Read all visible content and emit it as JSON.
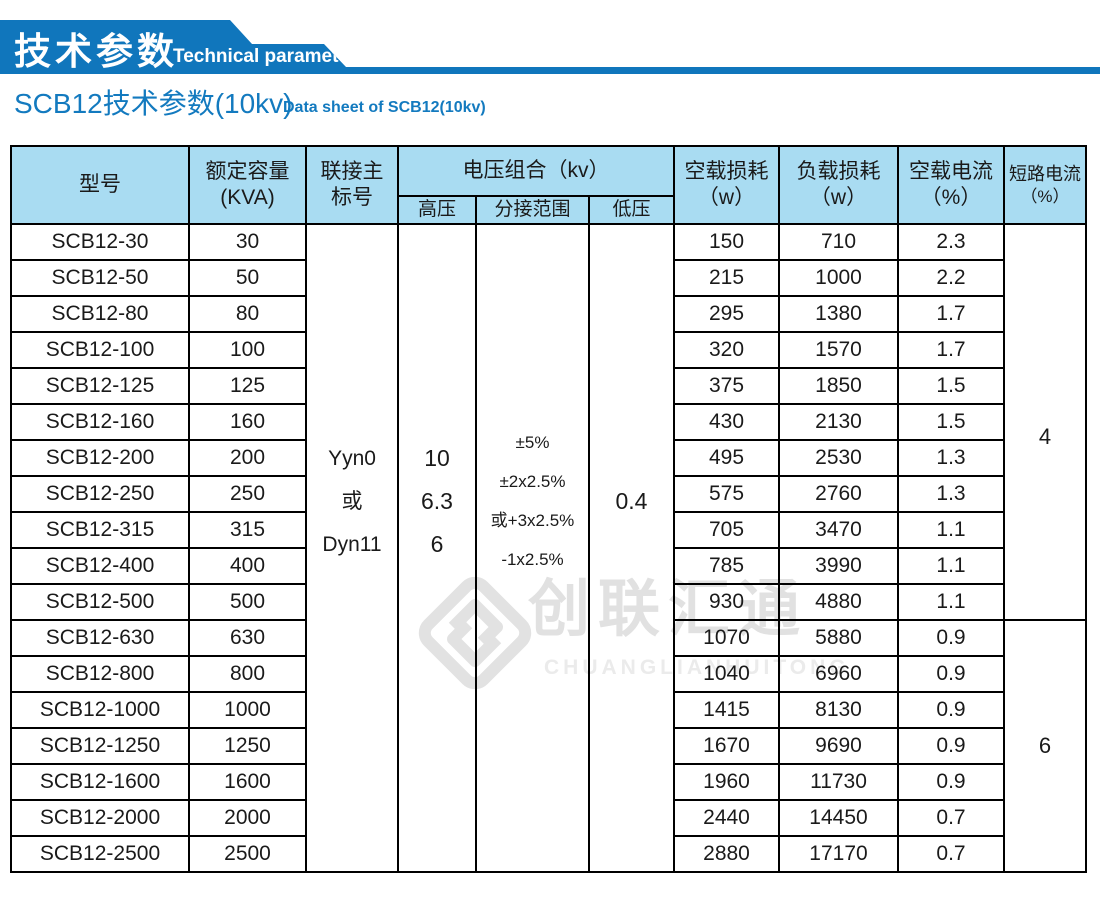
{
  "banner": {
    "title_cn": "技术参数",
    "title_en": "Technical parameter"
  },
  "page_title": {
    "cn": "SCB12技术参数(10kv)",
    "en": "Data sheet of SCB12(10kv)"
  },
  "colors": {
    "banner_blue": "#1076BC",
    "title_blue": "#137ABF",
    "header_bg": "#A9DCF2",
    "border_black": "#000000",
    "watermark_gray": "#E1E1E1"
  },
  "watermark": {
    "text_cn": "创联汇通",
    "text_en": "CHUANGLIANHUITONG"
  },
  "table": {
    "headers": {
      "model": "型号",
      "capacity_l1": "额定容量",
      "capacity_l2": "(KVA)",
      "vector_l1": "联接主",
      "vector_l2": "标号",
      "voltage_group": "电压组合（kv）",
      "hv": "高压",
      "tap": "分接范围",
      "lv": "低压",
      "no_load_loss_l1": "空载损耗",
      "no_load_loss_l2": "（w）",
      "load_loss_l1": "负载损耗",
      "load_loss_l2": "（w）",
      "no_load_current_l1": "空载电流",
      "no_load_current_l2": "（%）",
      "short_circuit_l1": "短路电流",
      "short_circuit_l2": "（%）"
    },
    "merged": {
      "vector_lines": [
        "Yyn0",
        "或",
        "Dyn11"
      ],
      "hv_lines": [
        "10",
        "6.3",
        "6"
      ],
      "tap_lines": [
        "±5%",
        "±2x2.5%",
        "或+3x2.5%",
        "-1x2.5%"
      ],
      "lv": "0.4",
      "short_circuit_groups": [
        {
          "value": "4",
          "rows": 11
        },
        {
          "value": "6",
          "rows": 7
        }
      ]
    },
    "rows": [
      {
        "model": "SCB12-30",
        "kva": "30",
        "no_load_loss": "150",
        "load_loss": "710",
        "no_load_current": "2.3"
      },
      {
        "model": "SCB12-50",
        "kva": "50",
        "no_load_loss": "215",
        "load_loss": "1000",
        "no_load_current": "2.2"
      },
      {
        "model": "SCB12-80",
        "kva": "80",
        "no_load_loss": "295",
        "load_loss": "1380",
        "no_load_current": "1.7"
      },
      {
        "model": "SCB12-100",
        "kva": "100",
        "no_load_loss": "320",
        "load_loss": "1570",
        "no_load_current": "1.7"
      },
      {
        "model": "SCB12-125",
        "kva": "125",
        "no_load_loss": "375",
        "load_loss": "1850",
        "no_load_current": "1.5"
      },
      {
        "model": "SCB12-160",
        "kva": "160",
        "no_load_loss": "430",
        "load_loss": "2130",
        "no_load_current": "1.5"
      },
      {
        "model": "SCB12-200",
        "kva": "200",
        "no_load_loss": "495",
        "load_loss": "2530",
        "no_load_current": "1.3"
      },
      {
        "model": "SCB12-250",
        "kva": "250",
        "no_load_loss": "575",
        "load_loss": "2760",
        "no_load_current": "1.3"
      },
      {
        "model": "SCB12-315",
        "kva": "315",
        "no_load_loss": "705",
        "load_loss": "3470",
        "no_load_current": "1.1"
      },
      {
        "model": "SCB12-400",
        "kva": "400",
        "no_load_loss": "785",
        "load_loss": "3990",
        "no_load_current": "1.1"
      },
      {
        "model": "SCB12-500",
        "kva": "500",
        "no_load_loss": "930",
        "load_loss": "4880",
        "no_load_current": "1.1"
      },
      {
        "model": "SCB12-630",
        "kva": "630",
        "no_load_loss": "1070",
        "load_loss": "5880",
        "no_load_current": "0.9"
      },
      {
        "model": "SCB12-800",
        "kva": "800",
        "no_load_loss": "1040",
        "load_loss": "6960",
        "no_load_current": "0.9"
      },
      {
        "model": "SCB12-1000",
        "kva": "1000",
        "no_load_loss": "1415",
        "load_loss": "8130",
        "no_load_current": "0.9"
      },
      {
        "model": "SCB12-1250",
        "kva": "1250",
        "no_load_loss": "1670",
        "load_loss": "9690",
        "no_load_current": "0.9"
      },
      {
        "model": "SCB12-1600",
        "kva": "1600",
        "no_load_loss": "1960",
        "load_loss": "11730",
        "no_load_current": "0.9"
      },
      {
        "model": "SCB12-2000",
        "kva": "2000",
        "no_load_loss": "2440",
        "load_loss": "14450",
        "no_load_current": "0.7"
      },
      {
        "model": "SCB12-2500",
        "kva": "2500",
        "no_load_loss": "2880",
        "load_loss": "17170",
        "no_load_current": "0.7"
      }
    ]
  }
}
